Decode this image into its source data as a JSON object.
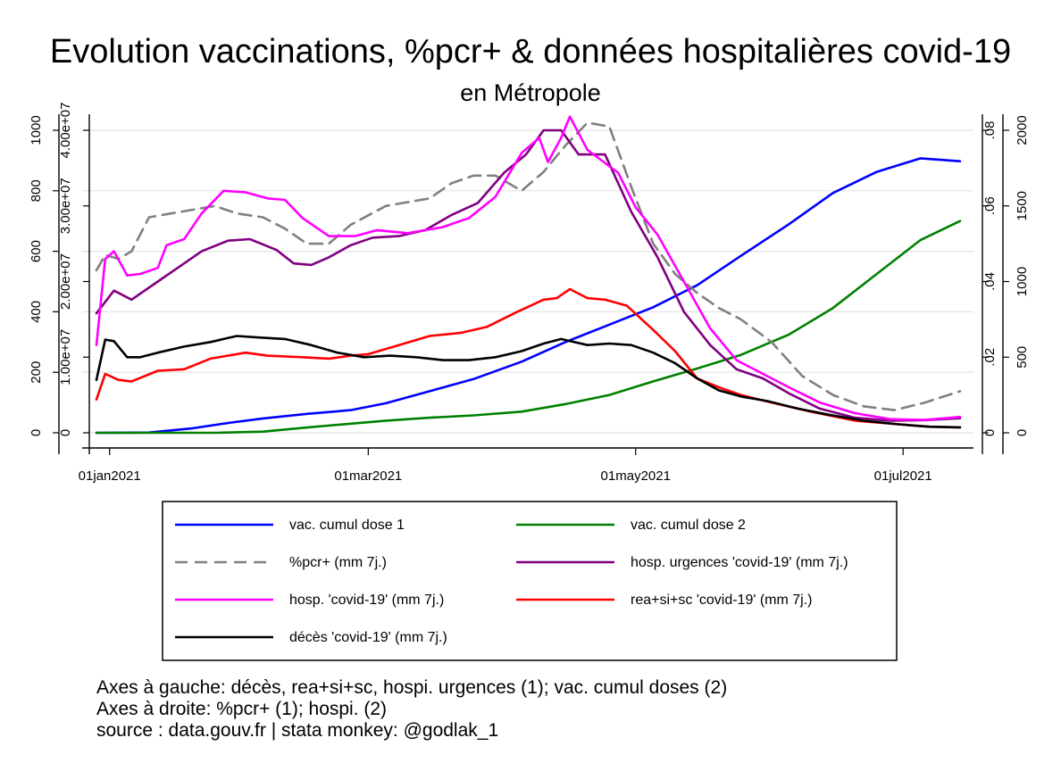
{
  "chart_data": {
    "type": "line",
    "title": "Evolution vaccinations, %pcr+ & données hospitalières covid-19",
    "subtitle": "en Métropole",
    "x_axis": {
      "tick_labels": [
        "01jan2021",
        "01mar2021",
        "01may2021",
        "01jul2021"
      ],
      "tick_dates": [
        "2021-01-01",
        "2021-03-01",
        "2021-05-01",
        "2021-07-01"
      ],
      "range": [
        "2020-12-29",
        "2021-07-14"
      ]
    },
    "axes": {
      "left1": {
        "ticks": [
          0,
          200,
          400,
          600,
          800,
          1000
        ],
        "tick_labels": [
          "0",
          "200",
          "400",
          "600",
          "800",
          "1000"
        ],
        "range": [
          0,
          1000
        ]
      },
      "left2": {
        "ticks": [
          0,
          10000000,
          20000000,
          30000000,
          40000000
        ],
        "tick_labels": [
          "0",
          "1.00e+07",
          "2.00e+07",
          "3.00e+07",
          "4.00e+07"
        ],
        "range": [
          0,
          40000000
        ]
      },
      "right1": {
        "ticks": [
          0,
          0.02,
          0.04,
          0.06,
          0.08
        ],
        "tick_labels": [
          "0",
          ".02",
          ".04",
          ".06",
          ".08"
        ],
        "range": [
          0,
          0.08
        ]
      },
      "right2": {
        "ticks": [
          0,
          500,
          1000,
          1500,
          2000
        ],
        "tick_labels": [
          "0",
          "500",
          "1000",
          "1500",
          "2000"
        ],
        "range": [
          0,
          2000
        ]
      }
    },
    "grid": true,
    "legend_position": "bottom",
    "series": [
      {
        "name": "vac. cumul dose 1",
        "color": "#0000ff",
        "dash": "solid",
        "axis": "left2",
        "points": [
          [
            "2020-12-29",
            0
          ],
          [
            "2021-01-10",
            40000
          ],
          [
            "2021-01-20",
            600000
          ],
          [
            "2021-01-28",
            1300000
          ],
          [
            "2021-02-05",
            1900000
          ],
          [
            "2021-02-15",
            2500000
          ],
          [
            "2021-02-25",
            3000000
          ],
          [
            "2021-03-05",
            3900000
          ],
          [
            "2021-03-15",
            5500000
          ],
          [
            "2021-03-25",
            7100000
          ],
          [
            "2021-04-05",
            9400000
          ],
          [
            "2021-04-15",
            12000000
          ],
          [
            "2021-04-25",
            14300000
          ],
          [
            "2021-05-05",
            16600000
          ],
          [
            "2021-05-15",
            19500000
          ],
          [
            "2021-05-25",
            23400000
          ],
          [
            "2021-06-05",
            27600000
          ],
          [
            "2021-06-15",
            31700000
          ],
          [
            "2021-06-25",
            34500000
          ],
          [
            "2021-07-05",
            36300000
          ],
          [
            "2021-07-14",
            35900000
          ]
        ]
      },
      {
        "name": "vac. cumul dose 2",
        "color": "#008000",
        "dash": "solid",
        "axis": "left2",
        "points": [
          [
            "2020-12-29",
            0
          ],
          [
            "2021-01-25",
            0
          ],
          [
            "2021-02-05",
            150000
          ],
          [
            "2021-02-15",
            700000
          ],
          [
            "2021-02-25",
            1200000
          ],
          [
            "2021-03-05",
            1600000
          ],
          [
            "2021-03-15",
            2000000
          ],
          [
            "2021-03-25",
            2300000
          ],
          [
            "2021-04-05",
            2800000
          ],
          [
            "2021-04-15",
            3800000
          ],
          [
            "2021-04-25",
            5000000
          ],
          [
            "2021-05-05",
            6800000
          ],
          [
            "2021-05-15",
            8500000
          ],
          [
            "2021-05-25",
            10300000
          ],
          [
            "2021-06-05",
            13000000
          ],
          [
            "2021-06-15",
            16500000
          ],
          [
            "2021-06-25",
            21000000
          ],
          [
            "2021-07-05",
            25500000
          ],
          [
            "2021-07-14",
            28000000
          ]
        ]
      },
      {
        "name": "%pcr+ (mm 7j.)",
        "color": "#808080",
        "dash": "dashed",
        "axis": "right1",
        "points": [
          [
            "2020-12-29",
            0.043
          ],
          [
            "2020-12-31",
            0.047
          ],
          [
            "2021-01-03",
            0.046
          ],
          [
            "2021-01-06",
            0.048
          ],
          [
            "2021-01-10",
            0.057
          ],
          [
            "2021-01-15",
            0.058
          ],
          [
            "2021-01-20",
            0.059
          ],
          [
            "2021-01-25",
            0.06
          ],
          [
            "2021-01-30",
            0.058
          ],
          [
            "2021-02-05",
            0.057
          ],
          [
            "2021-02-10",
            0.054
          ],
          [
            "2021-02-15",
            0.05
          ],
          [
            "2021-02-20",
            0.05
          ],
          [
            "2021-02-25",
            0.055
          ],
          [
            "2021-03-05",
            0.06
          ],
          [
            "2021-03-10",
            0.061
          ],
          [
            "2021-03-15",
            0.062
          ],
          [
            "2021-03-20",
            0.066
          ],
          [
            "2021-03-25",
            0.068
          ],
          [
            "2021-03-30",
            0.068
          ],
          [
            "2021-04-05",
            0.064
          ],
          [
            "2021-04-10",
            0.069
          ],
          [
            "2021-04-15",
            0.076
          ],
          [
            "2021-04-20",
            0.082
          ],
          [
            "2021-04-25",
            0.081
          ],
          [
            "2021-04-30",
            0.065
          ],
          [
            "2021-05-05",
            0.05
          ],
          [
            "2021-05-10",
            0.042
          ],
          [
            "2021-05-15",
            0.037
          ],
          [
            "2021-05-20",
            0.033
          ],
          [
            "2021-05-25",
            0.03
          ],
          [
            "2021-06-01",
            0.024
          ],
          [
            "2021-06-08",
            0.015
          ],
          [
            "2021-06-15",
            0.01
          ],
          [
            "2021-06-22",
            0.007
          ],
          [
            "2021-06-29",
            0.006
          ],
          [
            "2021-07-06",
            0.008
          ],
          [
            "2021-07-14",
            0.011
          ]
        ]
      },
      {
        "name": "hosp. urgences 'covid-19' (mm 7j.)",
        "color": "#800080",
        "dash": "solid",
        "axis": "left1",
        "points": [
          [
            "2020-12-29",
            395
          ],
          [
            "2021-01-02",
            470
          ],
          [
            "2021-01-06",
            440
          ],
          [
            "2021-01-12",
            500
          ],
          [
            "2021-01-18",
            560
          ],
          [
            "2021-01-22",
            600
          ],
          [
            "2021-01-28",
            635
          ],
          [
            "2021-02-02",
            640
          ],
          [
            "2021-02-08",
            605
          ],
          [
            "2021-02-12",
            560
          ],
          [
            "2021-02-16",
            555
          ],
          [
            "2021-02-20",
            580
          ],
          [
            "2021-02-25",
            620
          ],
          [
            "2021-03-02",
            645
          ],
          [
            "2021-03-08",
            650
          ],
          [
            "2021-03-14",
            670
          ],
          [
            "2021-03-20",
            720
          ],
          [
            "2021-03-26",
            760
          ],
          [
            "2021-04-01",
            860
          ],
          [
            "2021-04-06",
            920
          ],
          [
            "2021-04-10",
            1000
          ],
          [
            "2021-04-14",
            1000
          ],
          [
            "2021-04-18",
            920
          ],
          [
            "2021-04-24",
            920
          ],
          [
            "2021-04-30",
            730
          ],
          [
            "2021-05-06",
            580
          ],
          [
            "2021-05-12",
            400
          ],
          [
            "2021-05-18",
            290
          ],
          [
            "2021-05-24",
            210
          ],
          [
            "2021-05-30",
            180
          ],
          [
            "2021-06-05",
            130
          ],
          [
            "2021-06-12",
            80
          ],
          [
            "2021-06-20",
            50
          ],
          [
            "2021-06-28",
            40
          ],
          [
            "2021-07-06",
            42
          ],
          [
            "2021-07-14",
            48
          ]
        ]
      },
      {
        "name": "hosp. 'covid-19' (mm 7j.)",
        "color": "#ff00ff",
        "dash": "solid",
        "axis": "right2",
        "points": [
          [
            "2020-12-29",
            580
          ],
          [
            "2020-12-31",
            1150
          ],
          [
            "2021-01-02",
            1200
          ],
          [
            "2021-01-05",
            1040
          ],
          [
            "2021-01-08",
            1050
          ],
          [
            "2021-01-12",
            1090
          ],
          [
            "2021-01-14",
            1240
          ],
          [
            "2021-01-18",
            1280
          ],
          [
            "2021-01-22",
            1450
          ],
          [
            "2021-01-27",
            1600
          ],
          [
            "2021-02-01",
            1590
          ],
          [
            "2021-02-06",
            1550
          ],
          [
            "2021-02-10",
            1540
          ],
          [
            "2021-02-14",
            1420
          ],
          [
            "2021-02-20",
            1300
          ],
          [
            "2021-02-26",
            1300
          ],
          [
            "2021-03-03",
            1340
          ],
          [
            "2021-03-10",
            1320
          ],
          [
            "2021-03-18",
            1360
          ],
          [
            "2021-03-24",
            1420
          ],
          [
            "2021-03-30",
            1560
          ],
          [
            "2021-04-05",
            1850
          ],
          [
            "2021-04-09",
            1950
          ],
          [
            "2021-04-11",
            1790
          ],
          [
            "2021-04-14",
            1950
          ],
          [
            "2021-04-16",
            2090
          ],
          [
            "2021-04-20",
            1870
          ],
          [
            "2021-04-27",
            1720
          ],
          [
            "2021-05-01",
            1490
          ],
          [
            "2021-05-06",
            1310
          ],
          [
            "2021-05-12",
            1000
          ],
          [
            "2021-05-18",
            690
          ],
          [
            "2021-05-24",
            480
          ],
          [
            "2021-05-30",
            390
          ],
          [
            "2021-06-05",
            300
          ],
          [
            "2021-06-12",
            200
          ],
          [
            "2021-06-20",
            130
          ],
          [
            "2021-06-28",
            90
          ],
          [
            "2021-07-06",
            85
          ],
          [
            "2021-07-14",
            105
          ]
        ]
      },
      {
        "name": "rea+si+sc 'covid-19' (mm 7j.)",
        "color": "#ff0000",
        "dash": "solid",
        "axis": "left1",
        "points": [
          [
            "2020-12-29",
            110
          ],
          [
            "2020-12-31",
            195
          ],
          [
            "2021-01-03",
            175
          ],
          [
            "2021-01-06",
            170
          ],
          [
            "2021-01-12",
            205
          ],
          [
            "2021-01-18",
            210
          ],
          [
            "2021-01-24",
            245
          ],
          [
            "2021-02-01",
            265
          ],
          [
            "2021-02-06",
            255
          ],
          [
            "2021-02-14",
            250
          ],
          [
            "2021-02-20",
            245
          ],
          [
            "2021-02-25",
            255
          ],
          [
            "2021-03-01",
            260
          ],
          [
            "2021-03-08",
            290
          ],
          [
            "2021-03-15",
            320
          ],
          [
            "2021-03-22",
            330
          ],
          [
            "2021-03-28",
            350
          ],
          [
            "2021-04-04",
            400
          ],
          [
            "2021-04-10",
            440
          ],
          [
            "2021-04-13",
            445
          ],
          [
            "2021-04-16",
            475
          ],
          [
            "2021-04-20",
            445
          ],
          [
            "2021-04-24",
            440
          ],
          [
            "2021-04-29",
            420
          ],
          [
            "2021-05-05",
            340
          ],
          [
            "2021-05-10",
            270
          ],
          [
            "2021-05-15",
            180
          ],
          [
            "2021-05-20",
            150
          ],
          [
            "2021-05-25",
            125
          ],
          [
            "2021-06-01",
            100
          ],
          [
            "2021-06-10",
            70
          ],
          [
            "2021-06-20",
            40
          ],
          [
            "2021-06-30",
            28
          ],
          [
            "2021-07-07",
            20
          ],
          [
            "2021-07-14",
            18
          ]
        ]
      },
      {
        "name": "décès 'covid-19' (mm 7j.)",
        "color": "#000000",
        "dash": "solid",
        "axis": "left1",
        "points": [
          [
            "2020-12-29",
            175
          ],
          [
            "2020-12-31",
            308
          ],
          [
            "2021-01-02",
            303
          ],
          [
            "2021-01-05",
            250
          ],
          [
            "2021-01-08",
            250
          ],
          [
            "2021-01-12",
            265
          ],
          [
            "2021-01-18",
            285
          ],
          [
            "2021-01-24",
            300
          ],
          [
            "2021-01-30",
            320
          ],
          [
            "2021-02-04",
            315
          ],
          [
            "2021-02-10",
            310
          ],
          [
            "2021-02-16",
            290
          ],
          [
            "2021-02-22",
            265
          ],
          [
            "2021-02-28",
            250
          ],
          [
            "2021-03-06",
            255
          ],
          [
            "2021-03-12",
            250
          ],
          [
            "2021-03-18",
            240
          ],
          [
            "2021-03-24",
            240
          ],
          [
            "2021-03-30",
            250
          ],
          [
            "2021-04-05",
            270
          ],
          [
            "2021-04-10",
            295
          ],
          [
            "2021-04-14",
            310
          ],
          [
            "2021-04-20",
            290
          ],
          [
            "2021-04-25",
            295
          ],
          [
            "2021-04-30",
            290
          ],
          [
            "2021-05-05",
            265
          ],
          [
            "2021-05-10",
            230
          ],
          [
            "2021-05-15",
            180
          ],
          [
            "2021-05-20",
            140
          ],
          [
            "2021-05-25",
            120
          ],
          [
            "2021-05-31",
            105
          ],
          [
            "2021-06-07",
            80
          ],
          [
            "2021-06-14",
            60
          ],
          [
            "2021-06-22",
            40
          ],
          [
            "2021-06-30",
            28
          ],
          [
            "2021-07-07",
            20
          ],
          [
            "2021-07-14",
            18
          ]
        ]
      }
    ],
    "legend_labels": [
      "vac. cumul dose 1",
      "vac. cumul dose 2",
      "%pcr+ (mm 7j.)",
      "hosp. urgences 'covid-19' (mm 7j.)",
      "hosp. 'covid-19' (mm 7j.)",
      "rea+si+sc 'covid-19' (mm 7j.)",
      "décès 'covid-19' (mm 7j.)"
    ],
    "notes": [
      "Axes à gauche: décès, rea+si+sc, hospi. urgences (1); vac. cumul doses (2)",
      "Axes à droite: %pcr+ (1); hospi. (2)",
      "source : data.gouv.fr | stata monkey: @godlak_1"
    ]
  }
}
